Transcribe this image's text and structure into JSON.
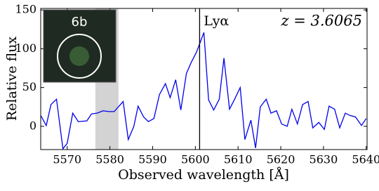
{
  "chart_data": {
    "type": "line",
    "xlabel": "Observed wavelength [Å]",
    "ylabel": "Relative flux",
    "annotations": {
      "line_label": "Lyα",
      "redshift": "z = 3.6065",
      "inset_label": "6b"
    },
    "x": [
      5563.8,
      5565.1,
      5566.2,
      5567.5,
      5569.0,
      5570.0,
      5571.3,
      5572.6,
      5574.6,
      5575.7,
      5577.0,
      5578.4,
      5579.7,
      5581.0,
      5583.1,
      5584.3,
      5585.6,
      5586.6,
      5587.9,
      5589.0,
      5590.3,
      5591.6,
      5593.0,
      5594.1,
      5595.4,
      5596.6,
      5597.9,
      5599.0,
      5600.3,
      5602.0,
      5603.1,
      5604.3,
      5605.6,
      5606.7,
      5608.0,
      5609.2,
      5610.5,
      5611.6,
      5613.0,
      5614.1,
      5615.2,
      5616.6,
      5617.7,
      5619.0,
      5620.2,
      5621.5,
      5622.6,
      5623.9,
      5625.1,
      5626.4,
      5627.5,
      5628.9,
      5630.2,
      5631.3,
      5632.6,
      5633.8,
      5635.1,
      5636.2,
      5637.5,
      5638.9,
      5640.0
    ],
    "series": [
      {
        "color": "#0000ee",
        "values": [
          14,
          1,
          28,
          35,
          -29,
          -22,
          17,
          6,
          7,
          16,
          17,
          20,
          19,
          19,
          32,
          -17,
          0,
          26,
          12,
          6,
          10,
          41,
          55,
          37,
          60,
          21,
          68,
          82,
          96,
          121,
          34,
          21,
          35,
          88,
          22,
          35,
          50,
          -17,
          8,
          -28,
          25,
          35,
          17,
          20,
          3,
          0,
          22,
          3,
          28,
          32,
          -2,
          5,
          -4,
          26,
          22,
          -2,
          17,
          14,
          12,
          1,
          10
        ]
      }
    ],
    "shaded_region": [
      5576.6,
      5582.0
    ],
    "vline": 5601.0,
    "xlim": [
      5563.8,
      5640.2
    ],
    "ylim": [
      -30,
      152
    ],
    "xticks": [
      5570,
      5580,
      5590,
      5600,
      5610,
      5620,
      5630,
      5640
    ],
    "yticks": [
      0,
      50,
      100,
      150
    ]
  }
}
